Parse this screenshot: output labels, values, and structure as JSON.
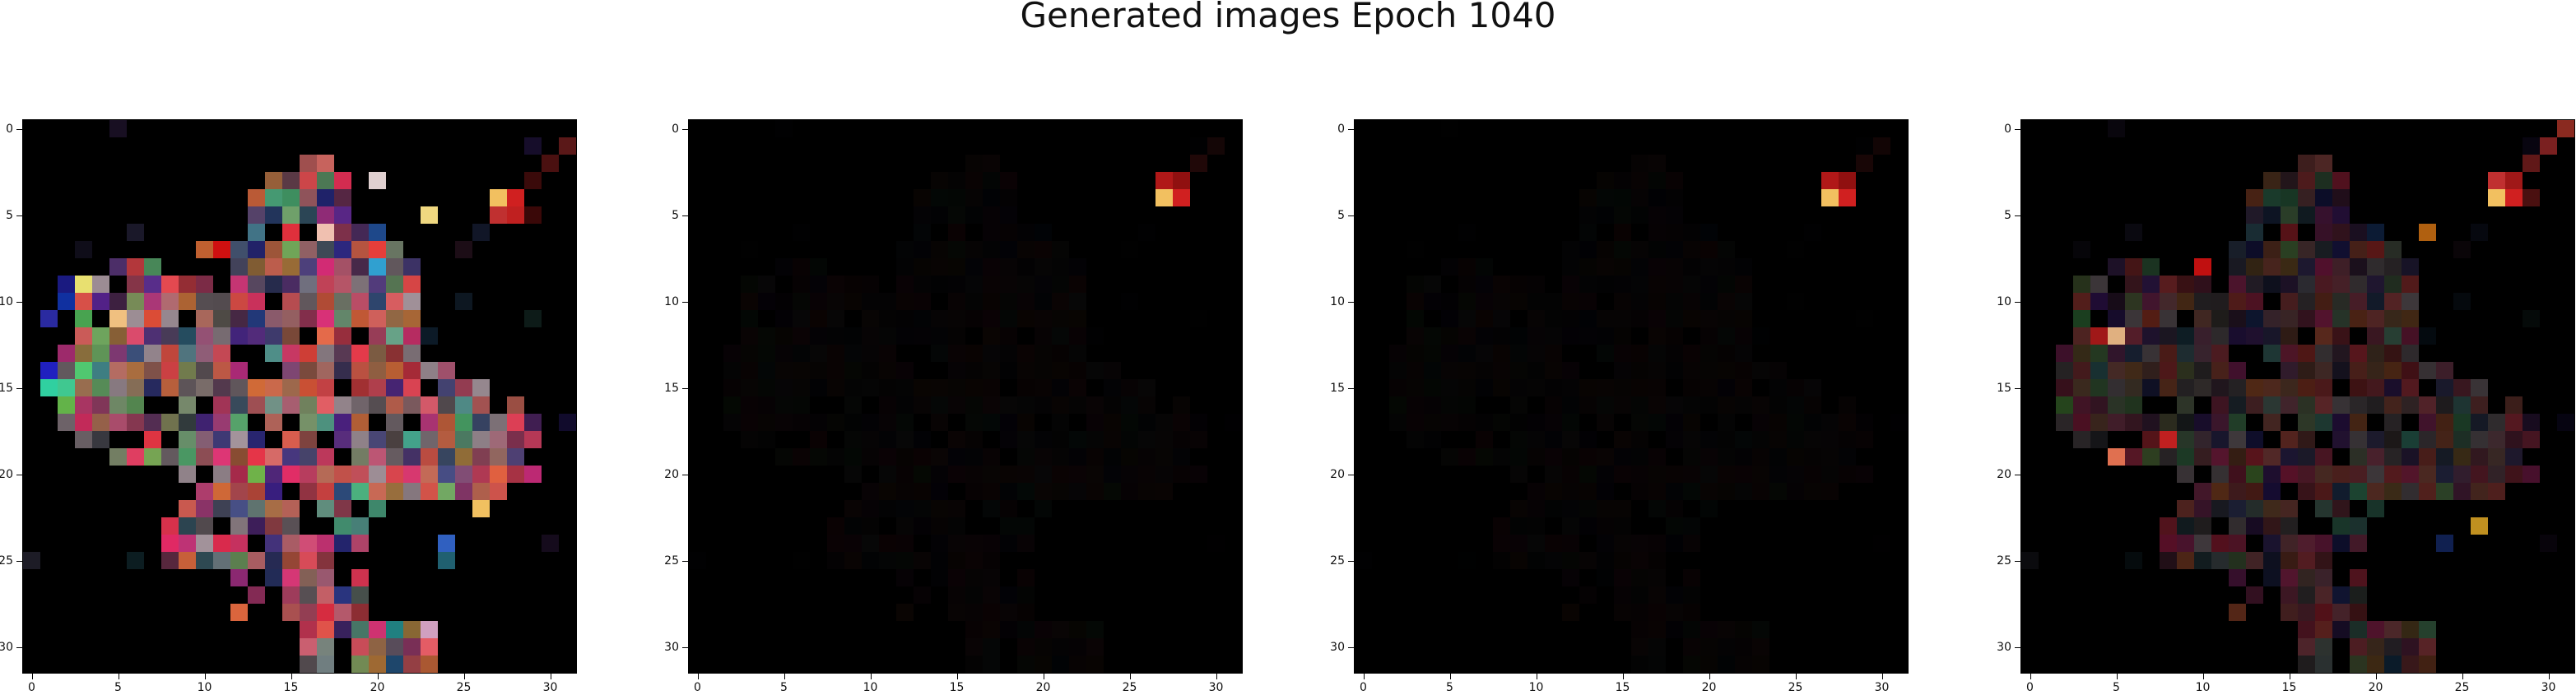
{
  "title": "Generated images Epoch 1040",
  "chart_data": {
    "type": "heatmap",
    "title": "Generated images Epoch 1040",
    "subplots": 4,
    "image_shape": [
      32,
      32,
      3
    ],
    "x_ticks": [
      "0",
      "5",
      "10",
      "15",
      "20",
      "25",
      "30"
    ],
    "y_ticks": [
      "0",
      "5",
      "10",
      "15",
      "20",
      "25",
      "30"
    ],
    "xlim": [
      -0.5,
      31.5
    ],
    "ylim": [
      31.5,
      -0.5
    ],
    "panels": [
      {
        "name": "generated-image-1",
        "brightness": 1.0,
        "corner_blob": [
          {
            "x": 27,
            "y": 4,
            "color": "#f2c060"
          },
          {
            "x": 28,
            "y": 4,
            "color": "#d02020"
          },
          {
            "x": 27,
            "y": 5,
            "color": "#c03030"
          },
          {
            "x": 28,
            "y": 5,
            "color": "#c02020"
          },
          {
            "x": 29,
            "y": 3,
            "color": "#3a0a0a"
          },
          {
            "x": 30,
            "y": 2,
            "color": "#4a1010"
          },
          {
            "x": 31,
            "y": 1,
            "color": "#5a1818"
          },
          {
            "x": 29,
            "y": 5,
            "color": "#3a0808"
          }
        ],
        "special_pixels": [
          {
            "x": 3,
            "y": 9,
            "color": "#e8e070"
          },
          {
            "x": 2,
            "y": 9,
            "color": "#1a1a80"
          },
          {
            "x": 2,
            "y": 10,
            "color": "#1030a0"
          },
          {
            "x": 1,
            "y": 11,
            "color": "#2a2aa0"
          },
          {
            "x": 1,
            "y": 14,
            "color": "#2020c0"
          },
          {
            "x": 2,
            "y": 15,
            "color": "#40c890"
          },
          {
            "x": 3,
            "y": 14,
            "color": "#50c870"
          },
          {
            "x": 1,
            "y": 15,
            "color": "#30d0a0"
          },
          {
            "x": 5,
            "y": 11,
            "color": "#f0c080"
          },
          {
            "x": 23,
            "y": 5,
            "color": "#f0d880"
          },
          {
            "x": 20,
            "y": 8,
            "color": "#30a0d0"
          },
          {
            "x": 20,
            "y": 3,
            "color": "#e0d0d0"
          },
          {
            "x": 27,
            "y": 20,
            "color": "#e06040"
          },
          {
            "x": 26,
            "y": 22,
            "color": "#f0c060"
          },
          {
            "x": 24,
            "y": 24,
            "color": "#3060c0"
          },
          {
            "x": 24,
            "y": 25,
            "color": "#206070"
          },
          {
            "x": 21,
            "y": 29,
            "color": "#208080"
          },
          {
            "x": 23,
            "y": 29,
            "color": "#d0a0c0"
          },
          {
            "x": 17,
            "y": 6,
            "color": "#f0c0b0"
          },
          {
            "x": 10,
            "y": 7,
            "color": "#c06030"
          },
          {
            "x": 11,
            "y": 7,
            "color": "#d01010"
          }
        ]
      },
      {
        "name": "generated-image-2",
        "brightness": 0.045,
        "corner_blob": [
          {
            "x": 27,
            "y": 4,
            "color": "#f2c060"
          },
          {
            "x": 28,
            "y": 4,
            "color": "#d02020"
          },
          {
            "x": 27,
            "y": 3,
            "color": "#b01818"
          },
          {
            "x": 28,
            "y": 3,
            "color": "#901010"
          },
          {
            "x": 29,
            "y": 2,
            "color": "#200808"
          },
          {
            "x": 30,
            "y": 1,
            "color": "#140606"
          }
        ],
        "special_pixels": []
      },
      {
        "name": "generated-image-3",
        "brightness": 0.04,
        "corner_blob": [
          {
            "x": 27,
            "y": 4,
            "color": "#f2c060"
          },
          {
            "x": 28,
            "y": 4,
            "color": "#d02020"
          },
          {
            "x": 27,
            "y": 3,
            "color": "#b01818"
          },
          {
            "x": 28,
            "y": 3,
            "color": "#901010"
          },
          {
            "x": 29,
            "y": 2,
            "color": "#180606"
          },
          {
            "x": 30,
            "y": 1,
            "color": "#120505"
          }
        ],
        "special_pixels": []
      },
      {
        "name": "generated-image-4",
        "brightness": 0.38,
        "corner_blob": [
          {
            "x": 27,
            "y": 4,
            "color": "#f2c060"
          },
          {
            "x": 28,
            "y": 4,
            "color": "#d02020"
          },
          {
            "x": 27,
            "y": 3,
            "color": "#c03030"
          },
          {
            "x": 28,
            "y": 3,
            "color": "#a01818"
          },
          {
            "x": 29,
            "y": 2,
            "color": "#601818"
          },
          {
            "x": 30,
            "y": 1,
            "color": "#7a2020"
          },
          {
            "x": 31,
            "y": 0,
            "color": "#8a2a20"
          },
          {
            "x": 29,
            "y": 4,
            "color": "#4a1010"
          }
        ],
        "special_pixels": [
          {
            "x": 10,
            "y": 8,
            "color": "#c01010"
          },
          {
            "x": 23,
            "y": 6,
            "color": "#b06010"
          },
          {
            "x": 26,
            "y": 23,
            "color": "#c09020"
          },
          {
            "x": 5,
            "y": 12,
            "color": "#e0b080"
          },
          {
            "x": 4,
            "y": 12,
            "color": "#a01818"
          },
          {
            "x": 8,
            "y": 18,
            "color": "#c02020"
          },
          {
            "x": 5,
            "y": 19,
            "color": "#e07050"
          },
          {
            "x": 24,
            "y": 24,
            "color": "#102050"
          }
        ]
      }
    ]
  }
}
